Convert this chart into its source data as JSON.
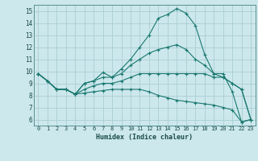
{
  "xlabel": "Humidex (Indice chaleur)",
  "bg_color": "#cce8ec",
  "grid_color": "#aacdd4",
  "line_color": "#1a7870",
  "xlim": [
    -0.5,
    23.5
  ],
  "ylim": [
    5.5,
    15.5
  ],
  "yticks": [
    6,
    7,
    8,
    9,
    10,
    11,
    12,
    13,
    14,
    15
  ],
  "xticks": [
    0,
    1,
    2,
    3,
    4,
    5,
    6,
    7,
    8,
    9,
    10,
    11,
    12,
    13,
    14,
    15,
    16,
    17,
    18,
    19,
    20,
    21,
    22,
    23
  ],
  "series": [
    [
      9.8,
      9.2,
      8.5,
      8.5,
      8.1,
      9.0,
      9.2,
      9.9,
      9.5,
      10.2,
      11.0,
      12.0,
      13.0,
      14.4,
      14.7,
      15.2,
      14.8,
      13.8,
      11.4,
      9.8,
      9.8,
      8.3,
      5.8,
      6.0
    ],
    [
      9.8,
      9.2,
      8.5,
      8.5,
      8.1,
      9.0,
      9.2,
      9.5,
      9.5,
      9.8,
      10.5,
      11.0,
      11.5,
      11.8,
      12.0,
      12.2,
      11.8,
      11.0,
      10.5,
      9.8,
      9.5,
      9.0,
      8.5,
      6.0
    ],
    [
      9.8,
      9.2,
      8.5,
      8.5,
      8.1,
      8.5,
      8.8,
      9.0,
      9.0,
      9.2,
      9.5,
      9.8,
      9.8,
      9.8,
      9.8,
      9.8,
      9.8,
      9.8,
      9.8,
      9.5,
      9.5,
      9.0,
      8.5,
      6.0
    ],
    [
      9.8,
      9.2,
      8.5,
      8.5,
      8.1,
      8.2,
      8.3,
      8.4,
      8.5,
      8.5,
      8.5,
      8.5,
      8.3,
      8.0,
      7.8,
      7.6,
      7.5,
      7.4,
      7.3,
      7.2,
      7.0,
      6.8,
      5.8,
      6.0
    ]
  ]
}
